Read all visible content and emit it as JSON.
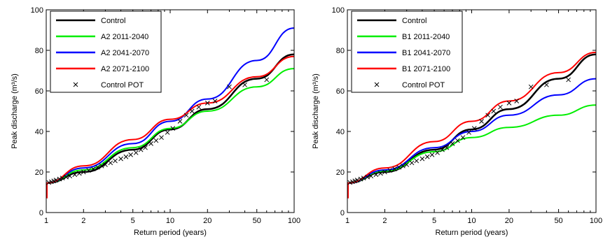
{
  "chart_data": [
    {
      "type": "line",
      "xlabel": "Return period (years)",
      "ylabel": "Peak discharge (m³/s)",
      "xscale": "log",
      "xlim": [
        1,
        100
      ],
      "ylim": [
        0,
        100
      ],
      "xticks": [
        1,
        2,
        5,
        10,
        20,
        50,
        100
      ],
      "yticks": [
        0,
        20,
        40,
        60,
        80,
        100
      ],
      "legend_position": "top-left",
      "series": [
        {
          "name": "Control",
          "color": "#000000",
          "x": [
            1,
            2,
            5,
            10,
            20,
            50,
            100
          ],
          "y": [
            14.5,
            20,
            31,
            41,
            51,
            66,
            78
          ]
        },
        {
          "name": "A2 2011-2040",
          "color": "#00ee00",
          "x": [
            1,
            2,
            5,
            10,
            20,
            50,
            100
          ],
          "y": [
            14.5,
            21,
            32,
            41.5,
            50,
            62,
            71
          ]
        },
        {
          "name": "A2 2041-2070",
          "color": "#0000ff",
          "x": [
            1,
            2,
            5,
            10,
            20,
            50,
            100
          ],
          "y": [
            14.5,
            22,
            34,
            45,
            56,
            75,
            91
          ]
        },
        {
          "name": "A2 2071-2100",
          "color": "#ff0000",
          "x": [
            1,
            2,
            5,
            10,
            20,
            50,
            100
          ],
          "y": [
            14.5,
            23,
            36,
            46,
            54,
            67,
            77
          ]
        }
      ],
      "scatter": {
        "name": "Control POT",
        "marker": "x",
        "points": [
          [
            1.05,
            14.8
          ],
          [
            1.1,
            15.2
          ],
          [
            1.15,
            15.6
          ],
          [
            1.2,
            16
          ],
          [
            1.28,
            16.5
          ],
          [
            1.35,
            17
          ],
          [
            1.45,
            17.5
          ],
          [
            1.55,
            18
          ],
          [
            1.7,
            18.7
          ],
          [
            1.85,
            19.3
          ],
          [
            2,
            20
          ],
          [
            2.2,
            20.8
          ],
          [
            2.4,
            21.5
          ],
          [
            2.6,
            22.3
          ],
          [
            2.8,
            23
          ],
          [
            3,
            23.6
          ],
          [
            3.3,
            24.5
          ],
          [
            3.6,
            25.5
          ],
          [
            4,
            26.5
          ],
          [
            4.4,
            27.5
          ],
          [
            4.8,
            28.5
          ],
          [
            5.3,
            29.5
          ],
          [
            5.8,
            31
          ],
          [
            6.3,
            32
          ],
          [
            7,
            34
          ],
          [
            7.7,
            35.5
          ],
          [
            8.5,
            37
          ],
          [
            9.5,
            39.5
          ],
          [
            10.5,
            41.5
          ],
          [
            12,
            45
          ],
          [
            13.5,
            48
          ],
          [
            15,
            50
          ],
          [
            17,
            52
          ],
          [
            20,
            54
          ],
          [
            23,
            55
          ],
          [
            30,
            62
          ],
          [
            40,
            63
          ],
          [
            60,
            65.5
          ]
        ]
      }
    },
    {
      "type": "line",
      "xlabel": "Return period (years)",
      "ylabel": "Peak discharge (m³/s)",
      "xscale": "log",
      "xlim": [
        1,
        100
      ],
      "ylim": [
        0,
        100
      ],
      "xticks": [
        1,
        2,
        5,
        10,
        20,
        50,
        100
      ],
      "yticks": [
        0,
        20,
        40,
        60,
        80,
        100
      ],
      "legend_position": "top-left",
      "series": [
        {
          "name": "Control",
          "color": "#000000",
          "x": [
            1,
            2,
            5,
            10,
            20,
            50,
            100
          ],
          "y": [
            14.5,
            20,
            31,
            41,
            51,
            66,
            78
          ]
        },
        {
          "name": "B1 2011-2040",
          "color": "#00ee00",
          "x": [
            1,
            2,
            5,
            10,
            20,
            50,
            100
          ],
          "y": [
            14.5,
            20.5,
            30,
            37,
            42,
            48,
            53
          ]
        },
        {
          "name": "B1 2041-2070",
          "color": "#0000ff",
          "x": [
            1,
            2,
            5,
            10,
            20,
            50,
            100
          ],
          "y": [
            14.5,
            21,
            32,
            40,
            48,
            58,
            66
          ]
        },
        {
          "name": "B1 2071-2100",
          "color": "#ff0000",
          "x": [
            1,
            2,
            5,
            10,
            20,
            50,
            100
          ],
          "y": [
            14.5,
            22,
            35,
            45,
            55,
            69,
            79
          ]
        }
      ],
      "scatter": {
        "name": "Control POT",
        "marker": "x",
        "points": [
          [
            1.05,
            14.8
          ],
          [
            1.1,
            15.2
          ],
          [
            1.15,
            15.6
          ],
          [
            1.2,
            16
          ],
          [
            1.28,
            16.5
          ],
          [
            1.35,
            17
          ],
          [
            1.45,
            17.5
          ],
          [
            1.55,
            18
          ],
          [
            1.7,
            18.7
          ],
          [
            1.85,
            19.3
          ],
          [
            2,
            20
          ],
          [
            2.2,
            20.8
          ],
          [
            2.4,
            21.5
          ],
          [
            2.6,
            22.3
          ],
          [
            2.8,
            23
          ],
          [
            3,
            23.6
          ],
          [
            3.3,
            24.5
          ],
          [
            3.6,
            25.5
          ],
          [
            4,
            26.5
          ],
          [
            4.4,
            27.5
          ],
          [
            4.8,
            28.5
          ],
          [
            5.3,
            29.5
          ],
          [
            5.8,
            31
          ],
          [
            6.3,
            32
          ],
          [
            7,
            34
          ],
          [
            7.7,
            35.5
          ],
          [
            8.5,
            37
          ],
          [
            9.5,
            39.5
          ],
          [
            10.5,
            41.5
          ],
          [
            12,
            45
          ],
          [
            13.5,
            48
          ],
          [
            15,
            50
          ],
          [
            17,
            52
          ],
          [
            20,
            54
          ],
          [
            23,
            55
          ],
          [
            30,
            62
          ],
          [
            40,
            63
          ],
          [
            60,
            65.5
          ]
        ]
      }
    }
  ]
}
